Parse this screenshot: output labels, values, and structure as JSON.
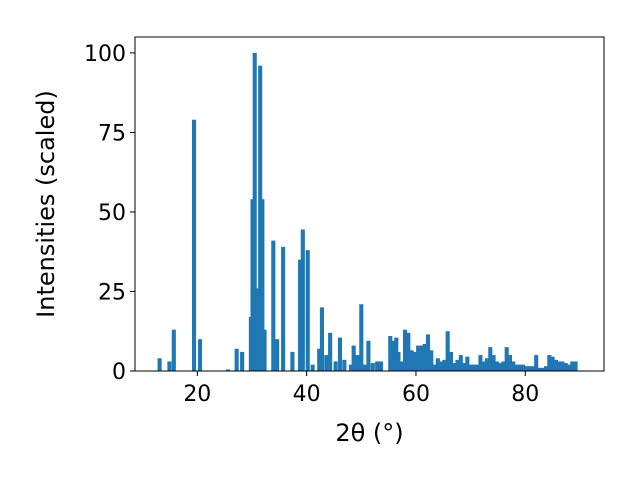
{
  "chart_data": {
    "type": "bar",
    "xlabel": "2θ (°)",
    "ylabel": "Intensities (scaled)",
    "xlim": [
      8.6,
      94.4
    ],
    "ylim": [
      0,
      105
    ],
    "xticks": [
      20,
      40,
      60,
      80
    ],
    "yticks": [
      0,
      25,
      50,
      75,
      100
    ],
    "bar_color": "#1f77b4",
    "bar_width": 0.75,
    "x": [
      13.1,
      14.9,
      15.7,
      19.4,
      20.5,
      25.6,
      27.2,
      28.2,
      29.8,
      30.1,
      30.5,
      31.0,
      31.5,
      31.9,
      32.3,
      33.9,
      34.6,
      35.7,
      37.4,
      38.8,
      39.3,
      40.2,
      41.1,
      42.3,
      42.8,
      43.6,
      44.3,
      45.3,
      46.1,
      46.9,
      48.1,
      48.6,
      49.3,
      50.0,
      50.6,
      51.3,
      52.1,
      52.9,
      53.6,
      55.3,
      55.9,
      56.4,
      56.8,
      57.4,
      58.0,
      58.6,
      59.2,
      59.8,
      60.4,
      61.0,
      61.6,
      62.2,
      62.8,
      63.4,
      64.0,
      64.6,
      65.2,
      65.8,
      66.4,
      67.0,
      67.6,
      68.2,
      68.8,
      69.4,
      70.0,
      70.6,
      71.2,
      71.8,
      72.4,
      73.0,
      73.6,
      74.2,
      74.8,
      75.4,
      76.0,
      76.6,
      77.2,
      77.8,
      78.4,
      79.0,
      79.6,
      80.2,
      80.8,
      81.4,
      82.0,
      82.6,
      83.2,
      83.8,
      84.4,
      85.0,
      85.6,
      86.2,
      86.8,
      87.4,
      88.0,
      88.6,
      89.2
    ],
    "values": [
      4,
      3,
      13,
      79,
      10,
      0.5,
      7,
      6,
      17,
      54,
      100,
      26,
      96,
      54,
      13,
      41,
      10,
      39,
      6,
      35,
      44.5,
      38,
      2,
      7,
      20,
      5,
      12,
      3,
      10.5,
      3.5,
      2,
      8,
      5,
      21,
      2,
      9.5,
      2.5,
      3,
      3,
      11,
      9.5,
      10.5,
      6,
      3,
      13,
      12,
      6.5,
      6,
      8,
      8,
      8.5,
      11.5,
      6.5,
      2,
      4,
      3,
      3.5,
      12.5,
      6,
      2.5,
      3.5,
      5,
      2.5,
      4.5,
      2,
      2,
      2,
      5,
      3,
      4,
      7.5,
      5,
      3,
      2.5,
      3,
      7.5,
      5,
      3,
      2,
      2,
      2,
      1.5,
      1.5,
      1.5,
      5,
      1,
      1,
      1.5,
      5,
      4.5,
      3.5,
      3,
      3,
      2.5,
      2,
      3,
      3
    ]
  }
}
